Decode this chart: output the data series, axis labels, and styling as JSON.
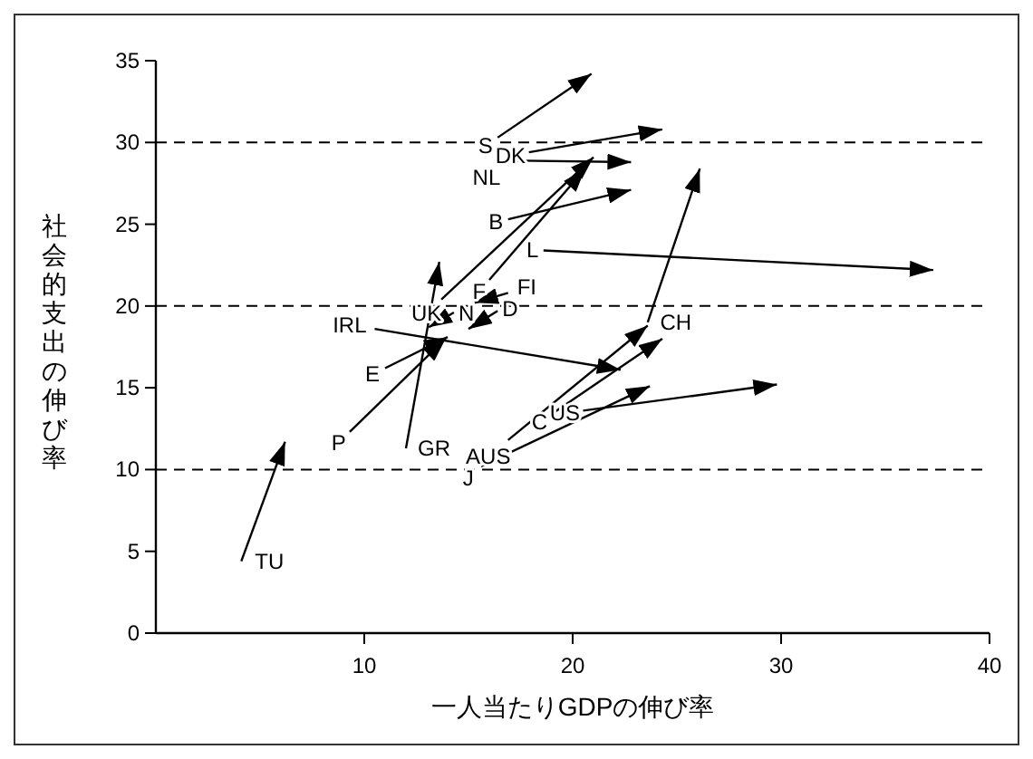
{
  "chart_data": {
    "type": "line",
    "xlabel": "一人当たりGDPの伸び率",
    "ylabel": "社会的支出の伸び率",
    "xlim": [
      0,
      40
    ],
    "xticks": [
      10,
      20,
      30,
      40
    ],
    "ylim": [
      0,
      35
    ],
    "yticks": [
      0,
      5,
      10,
      15,
      20,
      25,
      30,
      35
    ],
    "line_style": "solid",
    "ref_lines": [
      {
        "axis": "y",
        "value": 10,
        "line_style": "dashed"
      },
      {
        "axis": "y",
        "value": 20,
        "line_style": "dashed"
      },
      {
        "axis": "y",
        "value": 30,
        "line_style": "dashed"
      }
    ],
    "series": [
      {
        "name": "TU",
        "color": "#000000",
        "x": [
          4.1,
          6.2
        ],
        "values": [
          4.4,
          11.7
        ]
      },
      {
        "name": "GR",
        "color": "#000000",
        "x": [
          12.0,
          13.6
        ],
        "values": [
          11.3,
          22.7
        ]
      },
      {
        "name": "P",
        "color": "#000000",
        "x": [
          9.3,
          13.9
        ],
        "values": [
          12.3,
          18.0
        ]
      },
      {
        "name": "E",
        "color": "#000000",
        "x": [
          11.0,
          14.0
        ],
        "values": [
          16.2,
          18.1
        ]
      },
      {
        "name": "IRL",
        "color": "#000000",
        "x": [
          10.5,
          22.3
        ],
        "values": [
          18.6,
          16.1
        ]
      },
      {
        "name": "AUS",
        "color": "#000000",
        "x": [
          16.9,
          23.6
        ],
        "values": [
          11.8,
          18.8
        ]
      },
      {
        "name": "C",
        "color": "#000000",
        "x": [
          19.0,
          24.3
        ],
        "values": [
          13.4,
          18.0
        ]
      },
      {
        "name": "J",
        "color": "#000000",
        "x": [
          15.6,
          23.7
        ],
        "values": [
          10.2,
          15.1
        ]
      },
      {
        "name": "US",
        "color": "#000000",
        "x": [
          20.5,
          29.8
        ],
        "values": [
          13.6,
          15.2
        ]
      },
      {
        "name": "CH",
        "color": "#000000",
        "x": [
          23.6,
          26.1
        ],
        "values": [
          19.0,
          28.4
        ]
      },
      {
        "name": "L",
        "color": "#000000",
        "x": [
          18.6,
          37.3
        ],
        "values": [
          23.4,
          22.2
        ]
      },
      {
        "name": "S",
        "color": "#000000",
        "x": [
          16.4,
          20.9
        ],
        "values": [
          30.3,
          34.2
        ]
      },
      {
        "name": "DK",
        "color": "#000000",
        "x": [
          17.9,
          24.3
        ],
        "values": [
          29.4,
          30.8
        ]
      },
      {
        "name": "NL",
        "color": "#000000",
        "x": [
          16.7,
          22.8
        ],
        "values": [
          28.9,
          28.8
        ]
      },
      {
        "name": "B",
        "color": "#000000",
        "x": [
          16.9,
          22.8
        ],
        "values": [
          25.3,
          27.1
        ]
      },
      {
        "name": "F",
        "color": "#000000",
        "x": [
          16.0,
          20.6
        ],
        "values": [
          21.6,
          28.4
        ]
      },
      {
        "name": "UK",
        "color": "#000000",
        "x": [
          13.7,
          21.0
        ],
        "values": [
          20.4,
          29.1
        ]
      },
      {
        "name": "FI",
        "color": "#000000",
        "x": [
          16.9,
          15.3
        ],
        "values": [
          20.8,
          20.2
        ]
      },
      {
        "name": "D",
        "color": "#000000",
        "x": [
          16.4,
          15.0
        ],
        "values": [
          19.7,
          18.6
        ]
      },
      {
        "name": "N",
        "color": "#000000",
        "x": [
          14.3,
          13.1
        ],
        "values": [
          19.6,
          18.7
        ]
      }
    ]
  }
}
